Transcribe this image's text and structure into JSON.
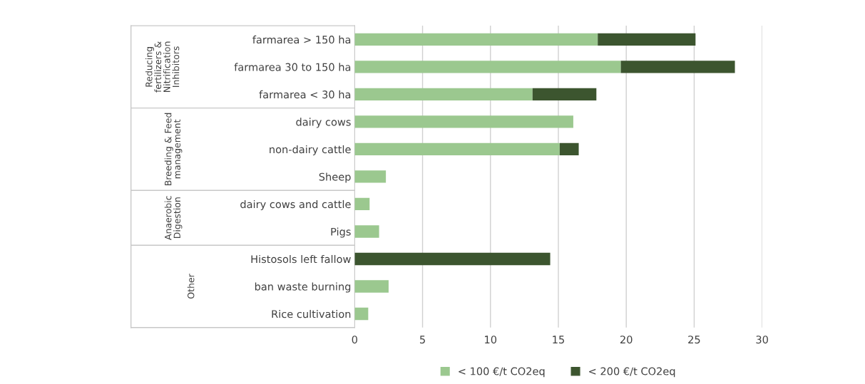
{
  "chart_data": {
    "type": "bar",
    "orientation": "horizontal",
    "stacked": true,
    "categories": [
      "farmarea > 150 ha",
      "farmarea 30 to 150 ha",
      "farmarea < 30 ha",
      "dairy cows",
      "non-dairy cattle",
      "Sheep",
      "dairy cows and cattle",
      "Pigs",
      "Histosols left fallow",
      "ban waste burning",
      "Rice cultivation"
    ],
    "series": [
      {
        "name": "< 100 €/t CO2eq",
        "color": "#9bc88f",
        "values": [
          17.9,
          19.6,
          13.1,
          16.1,
          15.1,
          2.3,
          1.1,
          1.8,
          0,
          2.5,
          1.0
        ]
      },
      {
        "name": "< 200 €/t CO2eq",
        "color": "#3c552f",
        "values": [
          7.2,
          8.4,
          4.7,
          0,
          1.4,
          0,
          0,
          0,
          14.4,
          0,
          0
        ]
      }
    ],
    "xlim": [
      0,
      30
    ],
    "xticks": [
      0,
      5,
      10,
      15,
      20,
      25,
      30
    ],
    "grid": "x",
    "legend": "bottom",
    "annotations": [
      "Reducing\nfertilizers &\nNitrification\nInhibitors",
      "Breeding & Feed\nmanagement",
      "Anaerobic\nDigestion",
      "Other"
    ]
  }
}
